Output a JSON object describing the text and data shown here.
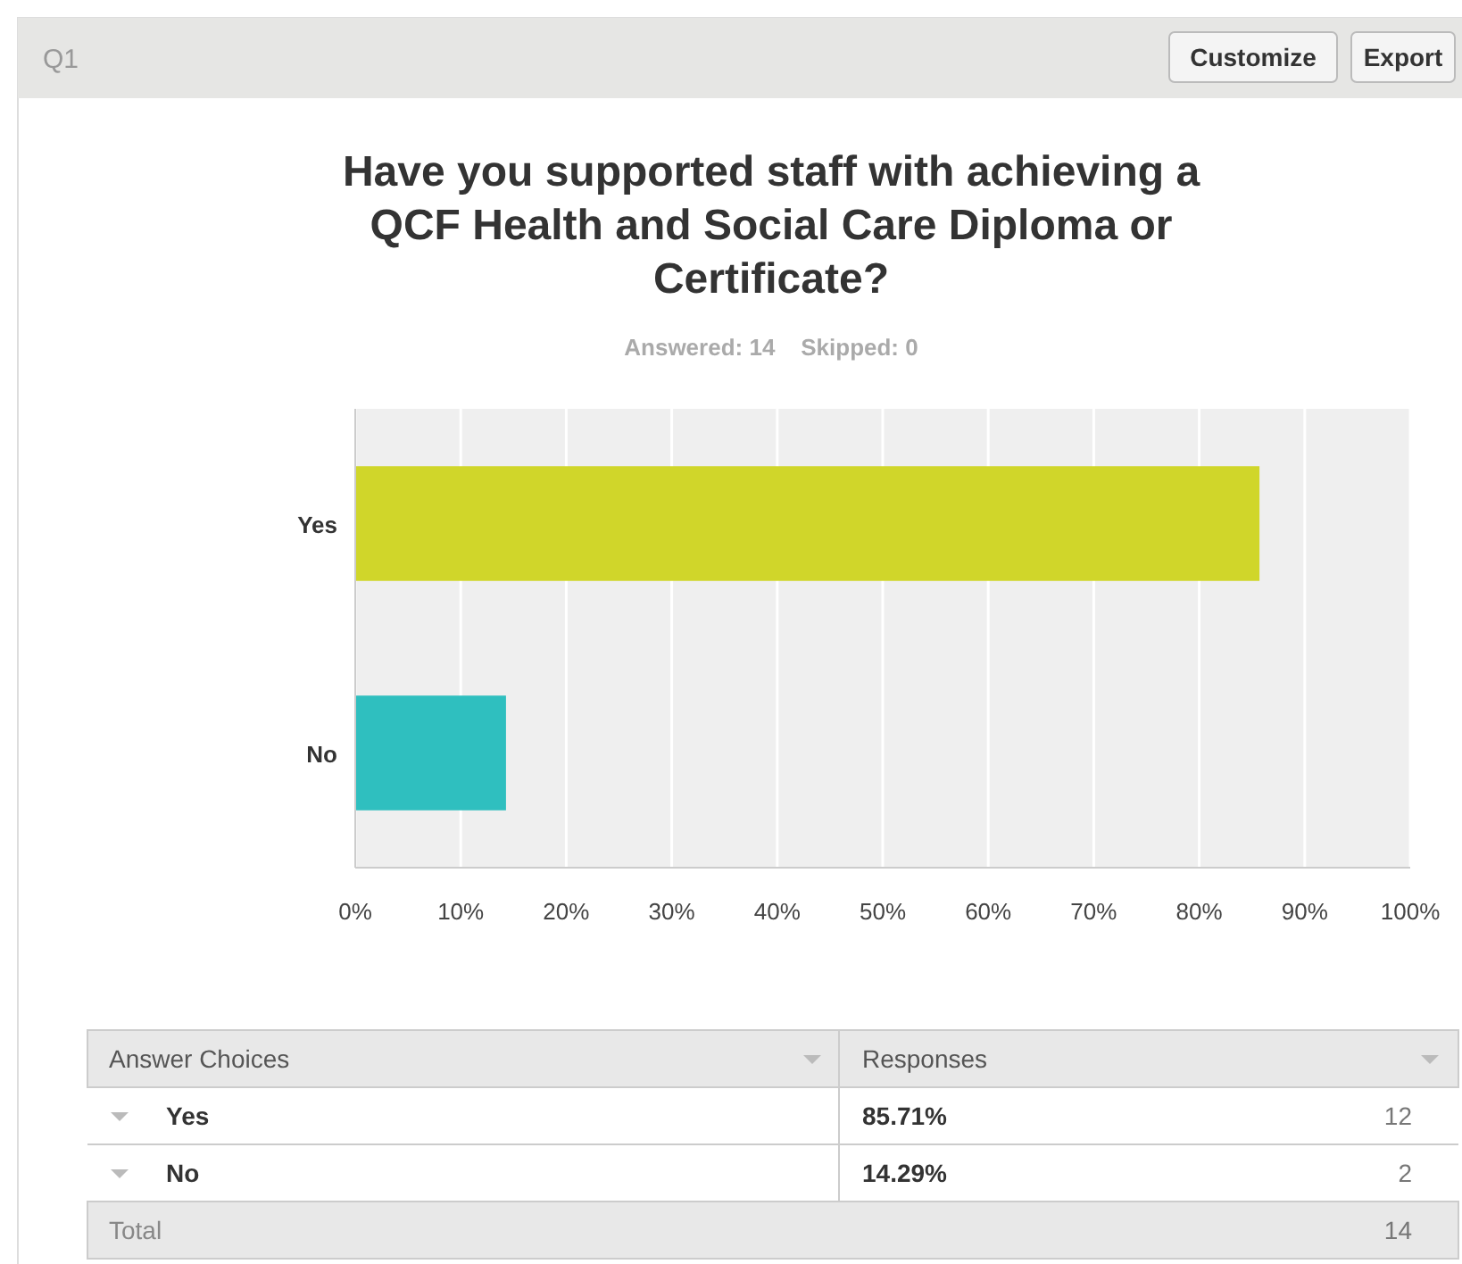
{
  "chart_data": {
    "type": "bar",
    "orientation": "horizontal",
    "title": "Have you supported staff with achieving a\nQCF Health and Social Care Diploma or\nCertificate?",
    "subtitle": "Answered: 14    Skipped: 0",
    "categories": [
      "Yes",
      "No"
    ],
    "values": [
      85.71,
      14.29
    ],
    "colors": [
      "#d0d62a",
      "#2fbfbf"
    ],
    "xlim": [
      0,
      100
    ],
    "xticks": [
      {
        "value": 0,
        "label": "0%"
      },
      {
        "value": 10,
        "label": "10%"
      },
      {
        "value": 20,
        "label": "20%"
      },
      {
        "value": 30,
        "label": "30%"
      },
      {
        "value": 40,
        "label": "40%"
      },
      {
        "value": 50,
        "label": "50%"
      },
      {
        "value": 60,
        "label": "60%"
      },
      {
        "value": 70,
        "label": "70%"
      },
      {
        "value": 80,
        "label": "80%"
      },
      {
        "value": 90,
        "label": "90%"
      },
      {
        "value": 100,
        "label": "100%"
      }
    ],
    "grid": "x",
    "annotations": [
      "Q1",
      "Customize",
      "Export",
      "Answer Choices",
      "Responses",
      "12",
      "2",
      "Total",
      "14",
      "85.71%",
      "14.29%"
    ]
  }
}
